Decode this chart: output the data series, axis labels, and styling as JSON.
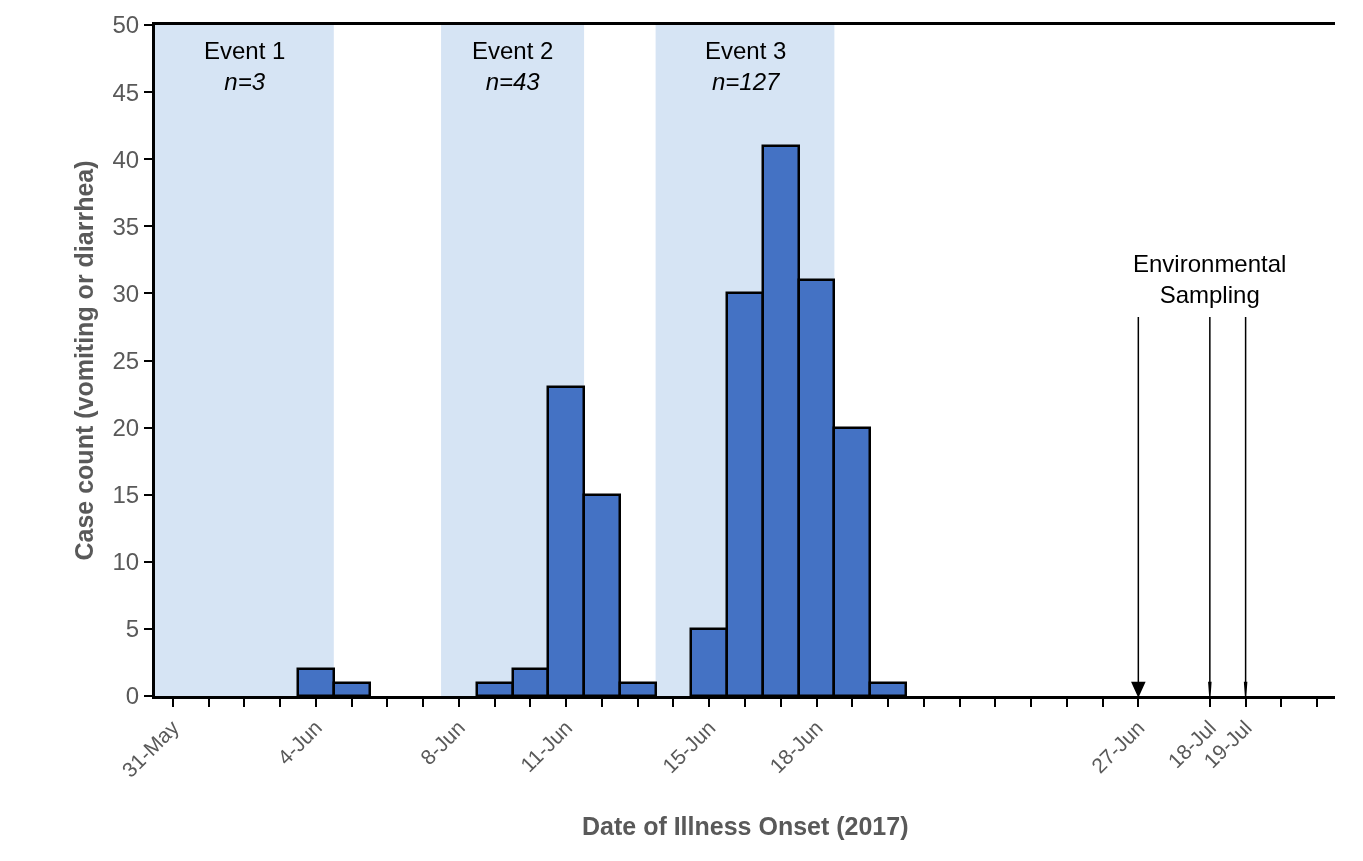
{
  "chart_data": [
    {
      "type": "bar",
      "xlabel": "Date of Illness Onset (2017)",
      "ylabel": "Case count (vomiting or diarrhea)",
      "x": [
        "2017-05-31",
        "2017-06-01",
        "2017-06-02",
        "2017-06-03",
        "2017-06-04",
        "2017-06-05",
        "2017-06-06",
        "2017-06-07",
        "2017-06-08",
        "2017-06-09",
        "2017-06-10",
        "2017-06-11",
        "2017-06-12",
        "2017-06-13",
        "2017-06-14",
        "2017-06-15",
        "2017-06-16",
        "2017-06-17",
        "2017-06-18",
        "2017-06-19",
        "2017-06-20",
        "2017-06-21",
        "2017-06-22",
        "2017-06-23",
        "2017-06-24",
        "2017-06-25",
        "2017-06-26",
        "2017-06-27"
      ],
      "values": [
        0,
        0,
        0,
        0,
        2,
        1,
        0,
        0,
        0,
        1,
        2,
        23,
        15,
        1,
        0,
        5,
        30,
        41,
        31,
        20,
        1,
        0,
        0,
        0,
        0,
        0,
        0,
        0
      ],
      "color": "#4472c4",
      "xlim": [
        "2017-05-30T12:00",
        "2017-06-28T00:00"
      ],
      "xticks": [
        {
          "value": "2017-05-31",
          "label": "31-May"
        },
        {
          "value": "2017-06-01",
          "label": null
        },
        {
          "value": "2017-06-02",
          "label": null
        },
        {
          "value": "2017-06-03",
          "label": null
        },
        {
          "value": "2017-06-04",
          "label": "4-Jun"
        },
        {
          "value": "2017-06-05",
          "label": null
        },
        {
          "value": "2017-06-06",
          "label": null
        },
        {
          "value": "2017-06-07",
          "label": null
        },
        {
          "value": "2017-06-08",
          "label": "8-Jun"
        },
        {
          "value": "2017-06-09",
          "label": null
        },
        {
          "value": "2017-06-10",
          "label": null
        },
        {
          "value": "2017-06-11",
          "label": "11-Jun"
        },
        {
          "value": "2017-06-12",
          "label": null
        },
        {
          "value": "2017-06-13",
          "label": null
        },
        {
          "value": "2017-06-14",
          "label": null
        },
        {
          "value": "2017-06-15",
          "label": "15-Jun"
        },
        {
          "value": "2017-06-16",
          "label": null
        },
        {
          "value": "2017-06-17",
          "label": null
        },
        {
          "value": "2017-06-18",
          "label": "18-Jun"
        },
        {
          "value": "2017-06-19",
          "label": null
        },
        {
          "value": "2017-06-20",
          "label": null
        },
        {
          "value": "2017-06-21",
          "label": null
        },
        {
          "value": "2017-06-22",
          "label": null
        },
        {
          "value": "2017-06-23",
          "label": null
        },
        {
          "value": "2017-06-24",
          "label": null
        },
        {
          "value": "2017-06-25",
          "label": null
        },
        {
          "value": "2017-06-26",
          "label": null
        },
        {
          "value": "2017-06-27",
          "label": "27-Jun"
        }
      ],
      "ylim": [
        0,
        50
      ],
      "yticks": [
        0,
        5,
        10,
        15,
        20,
        25,
        30,
        35,
        40,
        45,
        50
      ],
      "grid": false,
      "bands": [
        {
          "axis": "x",
          "from": "2017-05-30T12:00",
          "to": "2017-06-04T12:00",
          "label": "Event 1\nn=3",
          "color": "#d6e4f4"
        },
        {
          "axis": "x",
          "from": "2017-06-07T12:00",
          "to": "2017-06-11T12:00",
          "label": "Event 2\nn=43",
          "color": "#d6e4f4"
        },
        {
          "axis": "x",
          "from": "2017-06-13T12:00",
          "to": "2017-06-18T12:00",
          "label": "Event 3\nn=127",
          "color": "#d6e4f4"
        }
      ],
      "ref_lines": [
        {
          "axis": "x",
          "value": "2017-06-27"
        }
      ]
    },
    {
      "type": "bar",
      "x": [
        "2017-07-18",
        "2017-07-19",
        "2017-07-20",
        "2017-07-21"
      ],
      "values": [
        0,
        0,
        0,
        0
      ],
      "color": "#4472c4",
      "xlim": [
        "2017-07-17T00:00",
        "2017-07-21T12:00"
      ],
      "xticks": [
        {
          "value": "2017-07-18",
          "label": "18-Jul"
        },
        {
          "value": "2017-07-19",
          "label": "19-Jul"
        },
        {
          "value": "2017-07-20",
          "label": null
        },
        {
          "value": "2017-07-21",
          "label": null
        }
      ],
      "ylim": [
        0,
        50
      ],
      "tick_labels": "x",
      "grid": false,
      "ref_lines": [
        {
          "axis": "x",
          "value": "2017-07-18"
        },
        {
          "axis": "x",
          "value": "2017-07-19"
        }
      ],
      "annotations": [
        "Environmental\nSampling"
      ]
    }
  ]
}
